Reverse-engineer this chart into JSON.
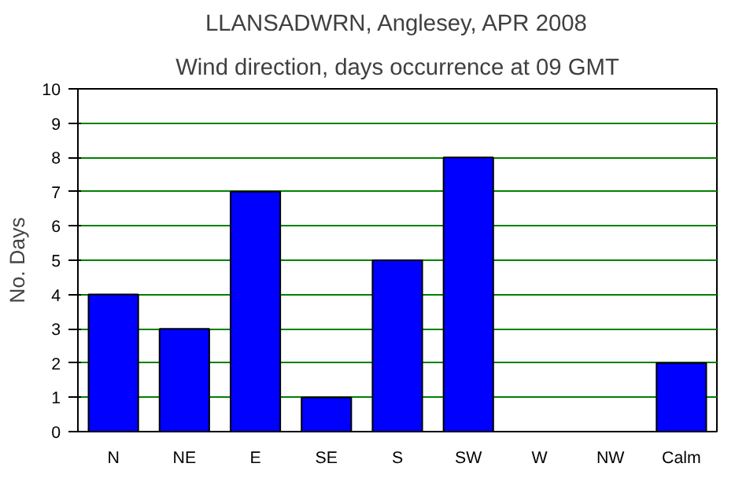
{
  "chart_data": {
    "type": "bar",
    "title": "LLANSADWRN, Anglesey, APR 2008",
    "subtitle": "Wind direction, days occurrence at 09 GMT",
    "ylabel": "No. Days",
    "categories": [
      "N",
      "NE",
      "E",
      "SE",
      "S",
      "SW",
      "W",
      "NW",
      "Calm"
    ],
    "values": [
      4,
      3,
      7,
      1,
      5,
      8,
      0,
      0,
      2
    ],
    "color": "#0000ff",
    "ylim": [
      0,
      10
    ],
    "yticks": [
      0,
      1,
      2,
      3,
      4,
      5,
      6,
      7,
      8,
      9,
      10
    ],
    "grid": "y"
  }
}
